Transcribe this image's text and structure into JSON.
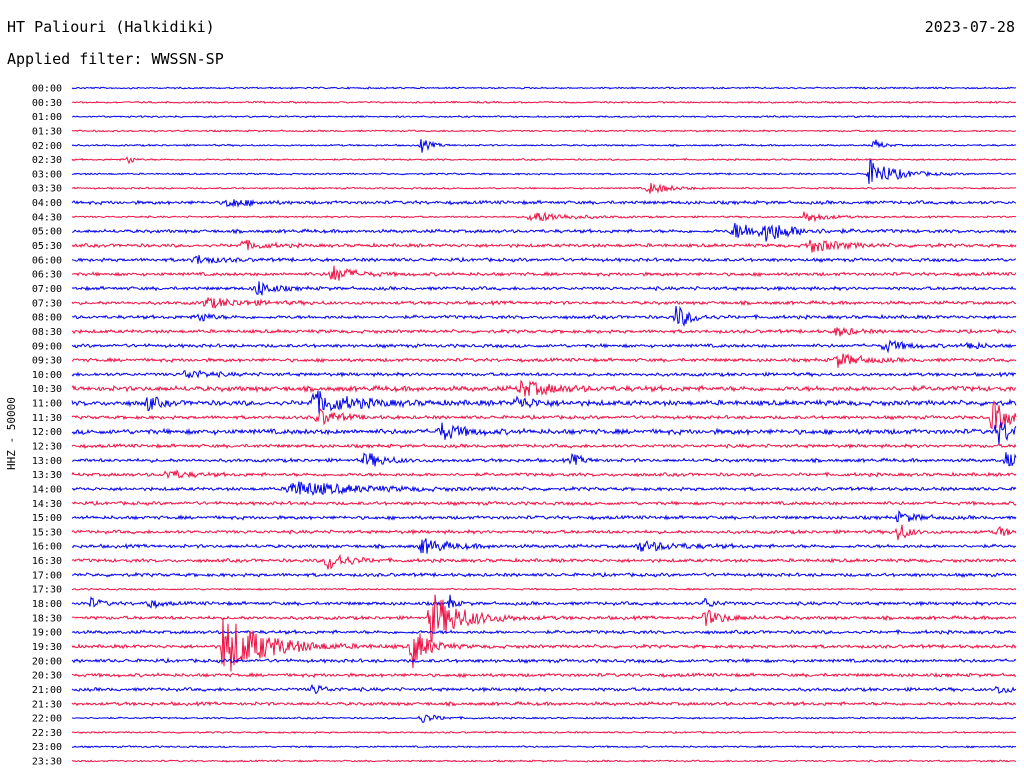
{
  "header": {
    "station": "HT Paliouri (Halkidiki)",
    "date": "2023-07-28",
    "filter": "Applied filter: WWSSN-SP"
  },
  "chart_data": {
    "type": "line",
    "title": "HT Paliouri (Halkidiki)",
    "subtitle": "Applied filter: WWSSN-SP",
    "date": "2023-07-28",
    "ylabel": "HHZ - 50000",
    "xlabel": "",
    "row_labels": [
      "00:00",
      "00:30",
      "01:00",
      "01:30",
      "02:00",
      "02:30",
      "03:00",
      "03:30",
      "04:00",
      "04:30",
      "05:00",
      "05:30",
      "06:00",
      "06:30",
      "07:00",
      "07:30",
      "08:00",
      "08:30",
      "09:00",
      "09:30",
      "10:00",
      "10:30",
      "11:00",
      "11:30",
      "12:00",
      "12:30",
      "13:00",
      "13:30",
      "14:00",
      "14:30",
      "15:00",
      "15:30",
      "16:00",
      "16:30",
      "17:00",
      "17:30",
      "18:00",
      "18:30",
      "19:00",
      "19:30",
      "20:00",
      "20:30",
      "21:00",
      "21:30",
      "22:00",
      "22:30",
      "23:00",
      "23:30"
    ],
    "colors": {
      "even_rows": "#0000ee",
      "odd_rows": "#ee1144",
      "text": "#000000"
    },
    "noise_level": [
      1,
      1,
      1,
      1,
      1,
      1,
      1,
      1,
      2,
      1,
      2,
      2,
      2,
      2,
      2,
      2,
      2,
      2,
      2,
      2,
      2,
      3,
      3,
      2,
      3,
      2,
      2,
      2,
      2,
      2,
      2,
      2,
      2,
      2,
      2,
      1,
      2,
      2,
      2,
      2,
      2,
      2,
      2,
      2,
      1,
      1,
      1,
      1
    ],
    "events": [
      {
        "row": "02:00",
        "x": 0.37,
        "amp": 7,
        "duration": 0.01
      },
      {
        "row": "02:00",
        "x": 0.85,
        "amp": 6,
        "duration": 0.008
      },
      {
        "row": "02:30",
        "x": 0.06,
        "amp": 7,
        "duration": 0.004
      },
      {
        "row": "03:00",
        "x": 0.845,
        "amp": 14,
        "duration": 0.025
      },
      {
        "row": "03:30",
        "x": 0.61,
        "amp": 6,
        "duration": 0.02
      },
      {
        "row": "04:00",
        "x": 0.165,
        "amp": 5,
        "duration": 0.02
      },
      {
        "row": "04:30",
        "x": 0.485,
        "amp": 6,
        "duration": 0.035
      },
      {
        "row": "04:30",
        "x": 0.775,
        "amp": 6,
        "duration": 0.02
      },
      {
        "row": "05:00",
        "x": 0.7,
        "amp": 8,
        "duration": 0.04
      },
      {
        "row": "05:00",
        "x": 0.735,
        "amp": 8,
        "duration": 0.02
      },
      {
        "row": "05:30",
        "x": 0.18,
        "amp": 5,
        "duration": 0.02
      },
      {
        "row": "05:30",
        "x": 0.78,
        "amp": 7,
        "duration": 0.03
      },
      {
        "row": "06:00",
        "x": 0.13,
        "amp": 5,
        "duration": 0.02
      },
      {
        "row": "06:30",
        "x": 0.275,
        "amp": 9,
        "duration": 0.02
      },
      {
        "row": "07:00",
        "x": 0.195,
        "amp": 9,
        "duration": 0.015
      },
      {
        "row": "07:30",
        "x": 0.14,
        "amp": 5,
        "duration": 0.04
      },
      {
        "row": "08:00",
        "x": 0.64,
        "amp": 12,
        "duration": 0.015
      },
      {
        "row": "08:00",
        "x": 0.135,
        "amp": 6,
        "duration": 0.01
      },
      {
        "row": "08:30",
        "x": 0.81,
        "amp": 5,
        "duration": 0.015
      },
      {
        "row": "09:00",
        "x": 0.86,
        "amp": 6,
        "duration": 0.02
      },
      {
        "row": "09:00",
        "x": 0.95,
        "amp": 5,
        "duration": 0.01
      },
      {
        "row": "09:30",
        "x": 0.81,
        "amp": 7,
        "duration": 0.025
      },
      {
        "row": "10:00",
        "x": 0.12,
        "amp": 5,
        "duration": 0.02
      },
      {
        "row": "10:30",
        "x": 0.475,
        "amp": 8,
        "duration": 0.03
      },
      {
        "row": "11:00",
        "x": 0.08,
        "amp": 8,
        "duration": 0.01
      },
      {
        "row": "11:00",
        "x": 0.255,
        "amp": 11,
        "duration": 0.04
      },
      {
        "row": "11:00",
        "x": 0.47,
        "amp": 6,
        "duration": 0.02
      },
      {
        "row": "11:30",
        "x": 0.26,
        "amp": 9,
        "duration": 0.02
      },
      {
        "row": "11:30",
        "x": 0.975,
        "amp": 18,
        "duration": 0.015
      },
      {
        "row": "12:00",
        "x": 0.39,
        "amp": 9,
        "duration": 0.02
      },
      {
        "row": "12:00",
        "x": 0.98,
        "amp": 14,
        "duration": 0.015
      },
      {
        "row": "13:00",
        "x": 0.31,
        "amp": 8,
        "duration": 0.02
      },
      {
        "row": "13:00",
        "x": 0.53,
        "amp": 6,
        "duration": 0.01
      },
      {
        "row": "13:00",
        "x": 0.99,
        "amp": 9,
        "duration": 0.01
      },
      {
        "row": "13:30",
        "x": 0.1,
        "amp": 5,
        "duration": 0.02
      },
      {
        "row": "14:00",
        "x": 0.23,
        "amp": 8,
        "duration": 0.06
      },
      {
        "row": "15:00",
        "x": 0.875,
        "amp": 5,
        "duration": 0.02
      },
      {
        "row": "15:30",
        "x": 0.875,
        "amp": 10,
        "duration": 0.01
      },
      {
        "row": "15:30",
        "x": 0.98,
        "amp": 6,
        "duration": 0.01
      },
      {
        "row": "16:00",
        "x": 0.37,
        "amp": 8,
        "duration": 0.025
      },
      {
        "row": "16:00",
        "x": 0.6,
        "amp": 5,
        "duration": 0.04
      },
      {
        "row": "16:30",
        "x": 0.27,
        "amp": 10,
        "duration": 0.02
      },
      {
        "row": "18:00",
        "x": 0.02,
        "amp": 5,
        "duration": 0.01
      },
      {
        "row": "18:00",
        "x": 0.08,
        "amp": 5,
        "duration": 0.01
      },
      {
        "row": "18:00",
        "x": 0.4,
        "amp": 8,
        "duration": 0.005
      },
      {
        "row": "18:00",
        "x": 0.67,
        "amp": 5,
        "duration": 0.01
      },
      {
        "row": "18:30",
        "x": 0.38,
        "amp": 26,
        "duration": 0.03
      },
      {
        "row": "18:30",
        "x": 0.67,
        "amp": 8,
        "duration": 0.02
      },
      {
        "row": "19:30",
        "x": 0.16,
        "amp": 32,
        "duration": 0.04
      },
      {
        "row": "19:30",
        "x": 0.36,
        "amp": 22,
        "duration": 0.015
      },
      {
        "row": "21:00",
        "x": 0.255,
        "amp": 6,
        "duration": 0.01
      },
      {
        "row": "21:00",
        "x": 0.98,
        "amp": 5,
        "duration": 0.01
      },
      {
        "row": "22:00",
        "x": 0.37,
        "amp": 5,
        "duration": 0.015
      }
    ]
  }
}
